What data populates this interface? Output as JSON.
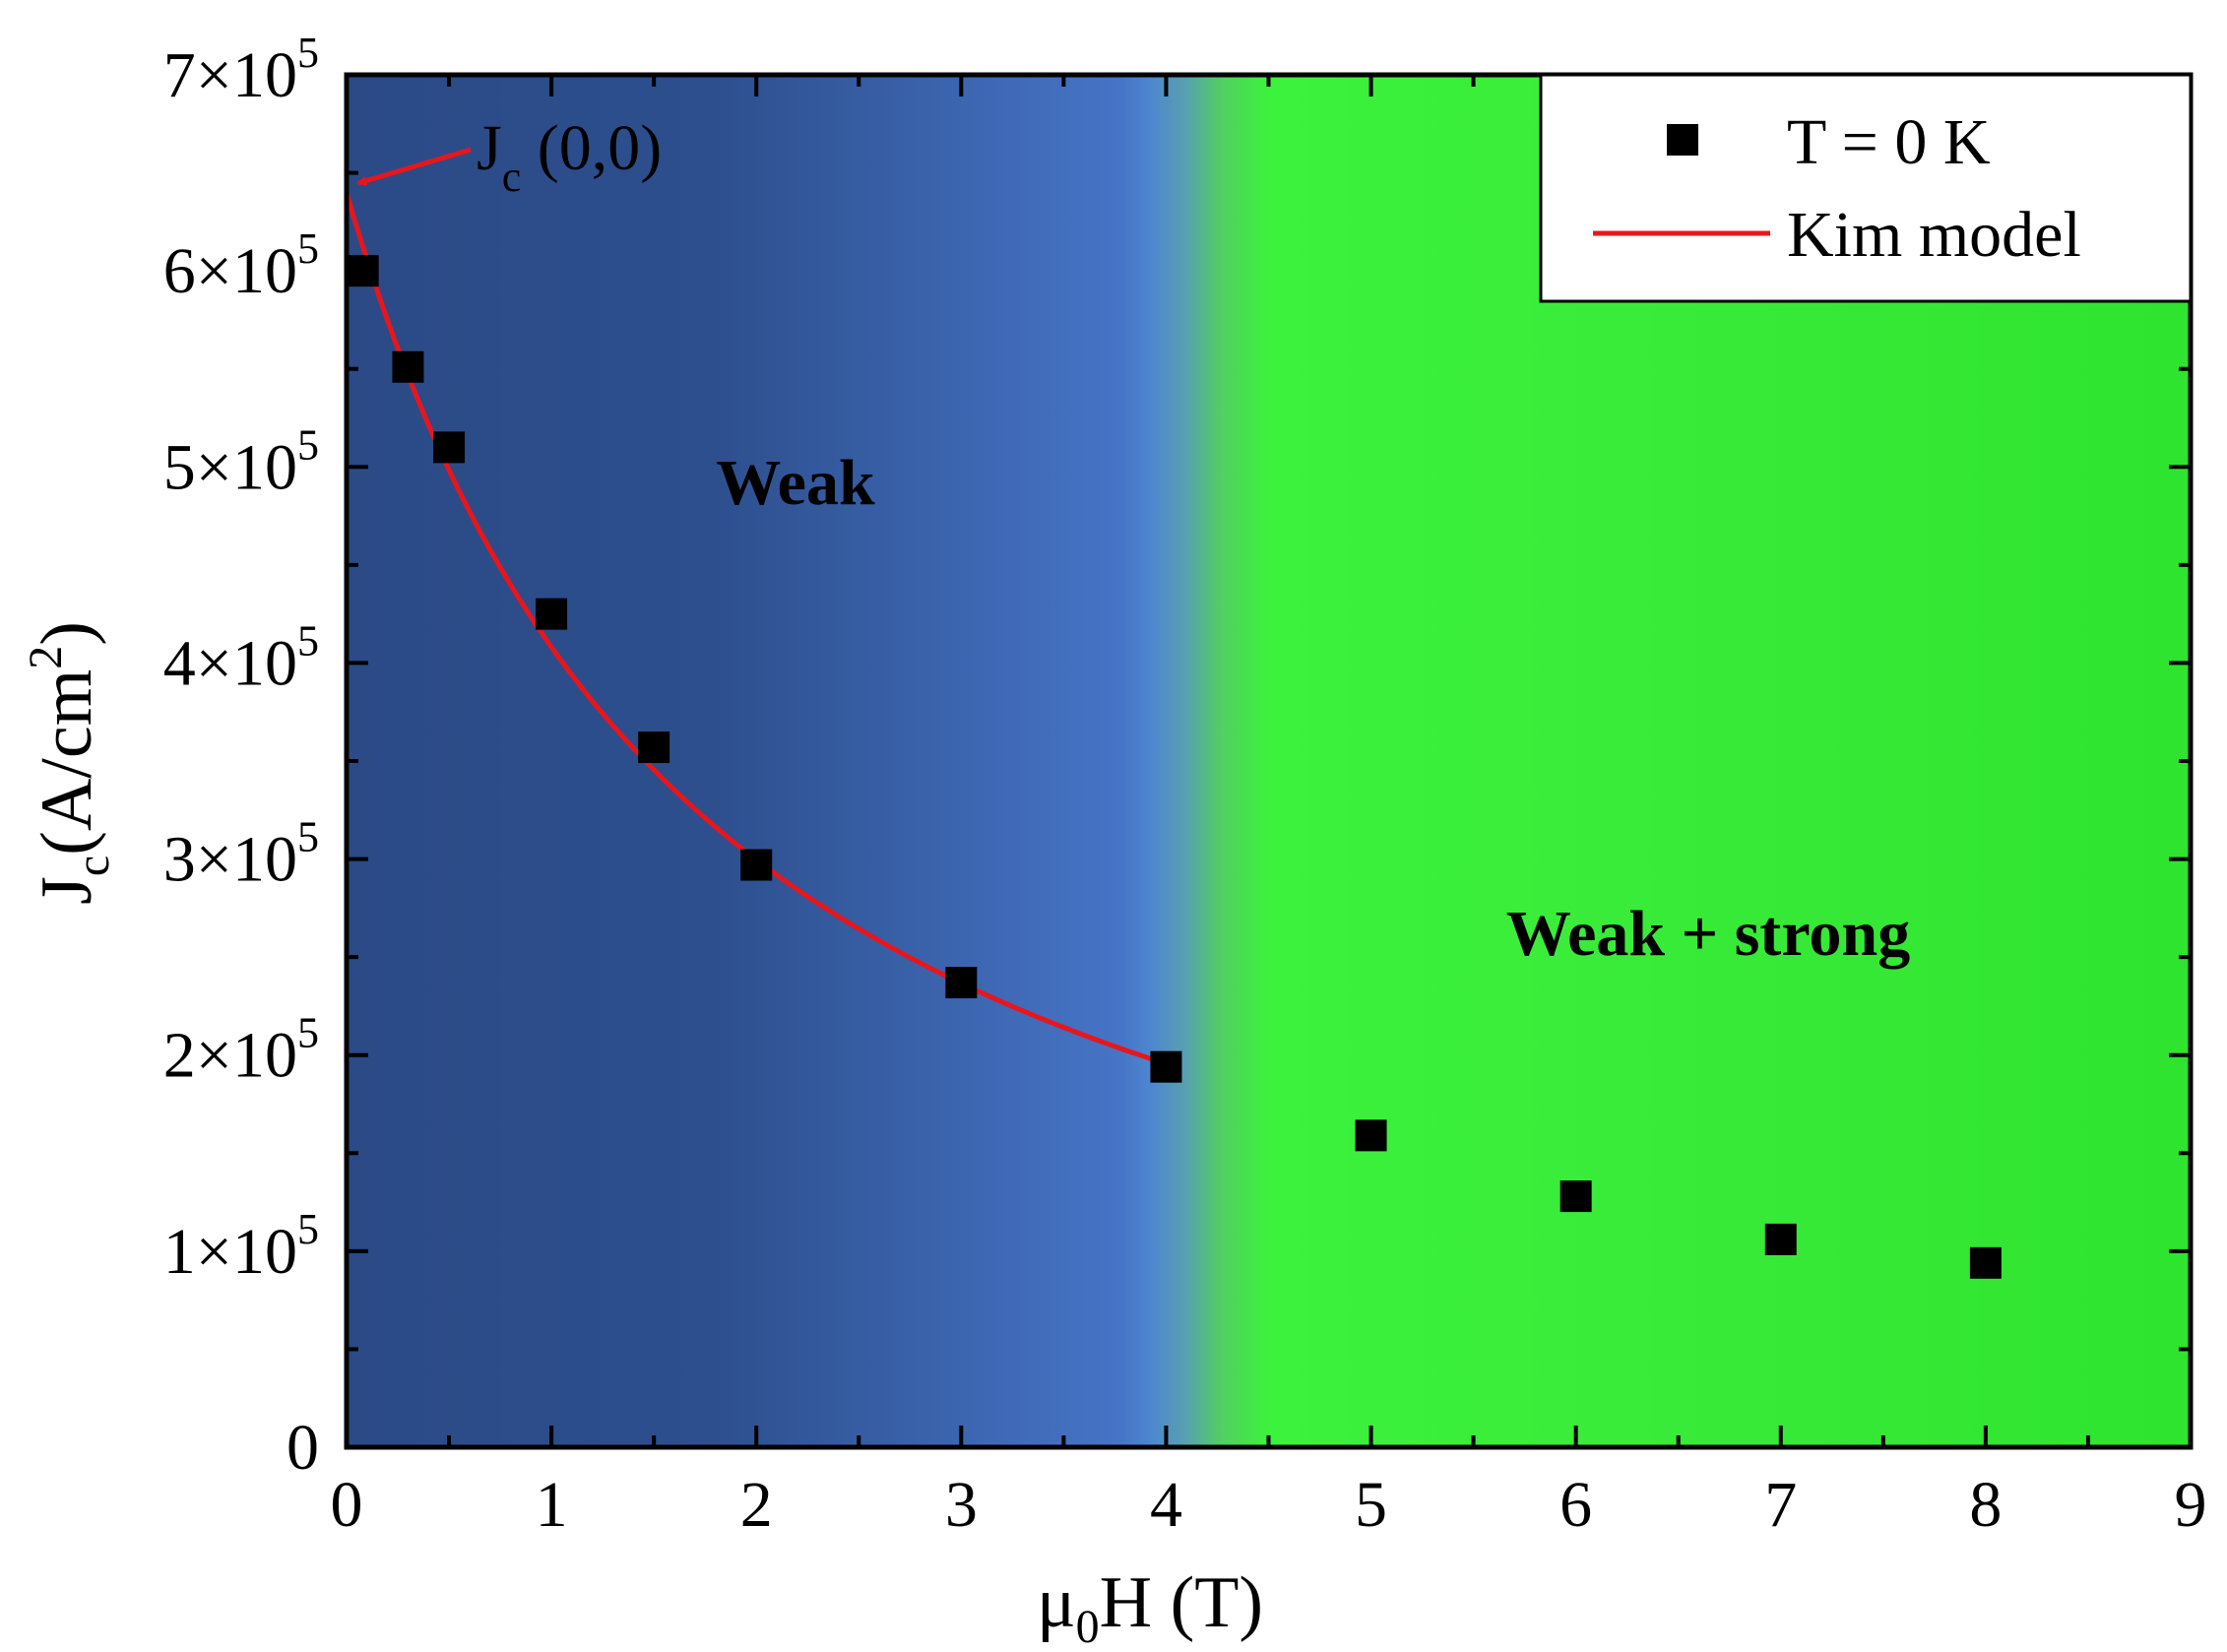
{
  "chart_data": {
    "type": "scatter",
    "title": "",
    "xlabel": "μ0H (T)",
    "xlabel_parts": {
      "base": "μ",
      "sub": "0",
      "rest": "H (T)"
    },
    "ylabel": "Jc(A/cm2)",
    "ylabel_parts": {
      "base": "J",
      "sub": "c",
      "mid": "(A/cm",
      "sup": "2",
      "end": ")"
    },
    "xlim": [
      0,
      9
    ],
    "ylim": [
      0,
      700000
    ],
    "x_ticks": [
      0,
      1,
      2,
      3,
      4,
      5,
      6,
      7,
      8,
      9
    ],
    "y_ticks": [
      {
        "value": 0,
        "label": "0"
      },
      {
        "value": 100000,
        "mantissa": "1",
        "times": "×10",
        "exp": "5"
      },
      {
        "value": 200000,
        "mantissa": "2",
        "times": "×10",
        "exp": "5"
      },
      {
        "value": 300000,
        "mantissa": "3",
        "times": "×10",
        "exp": "5"
      },
      {
        "value": 400000,
        "mantissa": "4",
        "times": "×10",
        "exp": "5"
      },
      {
        "value": 500000,
        "mantissa": "5",
        "times": "×10",
        "exp": "5"
      },
      {
        "value": 600000,
        "mantissa": "6",
        "times": "×10",
        "exp": "5"
      },
      {
        "value": 700000,
        "mantissa": "7",
        "times": "×10",
        "exp": "5"
      }
    ],
    "series": [
      {
        "name": "T = 0 K",
        "kind": "scatter",
        "marker": "square",
        "color": "#000000",
        "x": [
          0.08,
          0.3,
          0.5,
          1.0,
          1.5,
          2.0,
          3.0,
          4.0,
          5.0,
          6.0,
          7.0,
          8.0
        ],
        "y": [
          600000,
          551000,
          510000,
          425000,
          357000,
          297000,
          237000,
          194000,
          159000,
          128000,
          106000,
          94000
        ]
      },
      {
        "name": "Kim model",
        "kind": "line",
        "color": "#e8161c",
        "model": {
          "Jc0": 640000,
          "H0": 1.76,
          "x_range": [
            0,
            4.0
          ]
        }
      }
    ],
    "regions": [
      {
        "label": "Weak",
        "x_range": [
          0,
          4.1
        ],
        "color": "#2f5496"
      },
      {
        "label": "Weak + strong",
        "x_range": [
          4.1,
          9
        ],
        "color": "#3cf23c"
      }
    ],
    "annotations": [
      {
        "text_base": "J",
        "text_sub": "c",
        "text_rest": " (0,0)",
        "points_to": {
          "x": 0,
          "y": 640000
        },
        "color": "#e8161c"
      }
    ],
    "legend": {
      "position": "top-right"
    },
    "grid": false
  }
}
